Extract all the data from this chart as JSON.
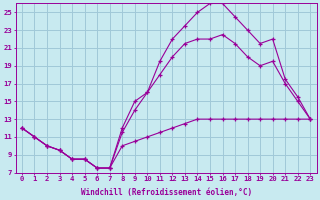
{
  "bg_color": "#c8eaf0",
  "grid_color": "#a0c8d8",
  "line_color": "#990099",
  "xlabel": "Windchill (Refroidissement éolien,°C)",
  "xlim": [
    -0.5,
    23.5
  ],
  "ylim": [
    7,
    26
  ],
  "xticks": [
    0,
    1,
    2,
    3,
    4,
    5,
    6,
    7,
    8,
    9,
    10,
    11,
    12,
    13,
    14,
    15,
    16,
    17,
    18,
    19,
    20,
    21,
    22,
    23
  ],
  "yticks": [
    7,
    9,
    11,
    13,
    15,
    17,
    19,
    21,
    23,
    25
  ],
  "line1_x": [
    0,
    1,
    2,
    3,
    4,
    5,
    6,
    7,
    8,
    9,
    10,
    11,
    12,
    13,
    14,
    15,
    16,
    17,
    18,
    19,
    20,
    21,
    22,
    23
  ],
  "line1_y": [
    12,
    11,
    10,
    9.5,
    8.5,
    8.5,
    7.5,
    7.5,
    10,
    10.5,
    11,
    11.5,
    12,
    12.5,
    13,
    13,
    13,
    13,
    13,
    13,
    13,
    13,
    13,
    13
  ],
  "line2_x": [
    0,
    1,
    2,
    3,
    4,
    5,
    6,
    7,
    8,
    9,
    10,
    11,
    12,
    13,
    14,
    15,
    16,
    17,
    18,
    19,
    20,
    21,
    22,
    23
  ],
  "line2_y": [
    12,
    11,
    10,
    9.5,
    8.5,
    8.5,
    7.5,
    7.5,
    11.5,
    14,
    16,
    18,
    20,
    21.5,
    22,
    22,
    22.5,
    21.5,
    20,
    19,
    19.5,
    17,
    15,
    13
  ],
  "line3_x": [
    0,
    1,
    2,
    3,
    4,
    5,
    6,
    7,
    8,
    9,
    10,
    11,
    12,
    13,
    14,
    15,
    16,
    17,
    18,
    19,
    20,
    21,
    22,
    23
  ],
  "line3_y": [
    12,
    11,
    10,
    9.5,
    8.5,
    8.5,
    7.5,
    7.5,
    12,
    15,
    16,
    19.5,
    22,
    23.5,
    25,
    26,
    26,
    24.5,
    23,
    21.5,
    22,
    17.5,
    15.5,
    13
  ]
}
